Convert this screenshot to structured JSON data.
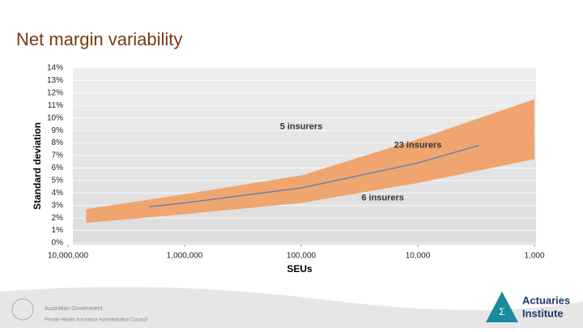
{
  "title": "Net margin variability",
  "chart_data": {
    "type": "band-line",
    "xlabel": "SEUs",
    "ylabel": "Standard deviation",
    "xscale": "log",
    "xreverse": true,
    "grid": true,
    "xlim": [
      10000000,
      1000
    ],
    "xticks": [
      {
        "value": 10000000,
        "label": "10,000,000"
      },
      {
        "value": 1000000,
        "label": "1,000,000"
      },
      {
        "value": 100000,
        "label": "100,000"
      },
      {
        "value": 10000,
        "label": "10,000"
      },
      {
        "value": 1000,
        "label": "1,000"
      }
    ],
    "ylim": [
      0,
      14
    ],
    "yticks": [
      {
        "value": 0,
        "label": "0%"
      },
      {
        "value": 1,
        "label": "1%"
      },
      {
        "value": 2,
        "label": "2%"
      },
      {
        "value": 3,
        "label": "3%"
      },
      {
        "value": 4,
        "label": "4%"
      },
      {
        "value": 5,
        "label": "5%"
      },
      {
        "value": 6,
        "label": "6%"
      },
      {
        "value": 7,
        "label": "7%"
      },
      {
        "value": 8,
        "label": "8%"
      },
      {
        "value": 9,
        "label": "9%"
      },
      {
        "value": 10,
        "label": "10%"
      },
      {
        "value": 11,
        "label": "11%"
      },
      {
        "value": 12,
        "label": "12%"
      },
      {
        "value": 13,
        "label": "13%"
      },
      {
        "value": 14,
        "label": "14%"
      }
    ],
    "band": {
      "color": "#f0a56e",
      "x": [
        7000000,
        1000000,
        100000,
        10000,
        1000
      ],
      "lower": [
        1.6,
        2.3,
        3.2,
        4.8,
        6.7
      ],
      "upper": [
        2.7,
        3.9,
        5.4,
        8.3,
        11.5
      ]
    },
    "series": [
      {
        "color": "#6b7fa8",
        "x": [
          2000000,
          1000000,
          100000,
          10000,
          3000
        ],
        "values": [
          2.9,
          3.2,
          4.4,
          6.4,
          7.8
        ]
      }
    ],
    "annotations": [
      {
        "text": "5 insurers",
        "x": 100000,
        "y": 9.3
      },
      {
        "text": "23 insurers",
        "x": 10000,
        "y": 7.8
      },
      {
        "text": "6 insurers",
        "x": 20000,
        "y": 3.6
      }
    ]
  },
  "footer": {
    "government": "Australian Government",
    "council": "Private Health Insurance Administration Council",
    "logo_line1": "Actuaries",
    "logo_line2": "Institute"
  }
}
